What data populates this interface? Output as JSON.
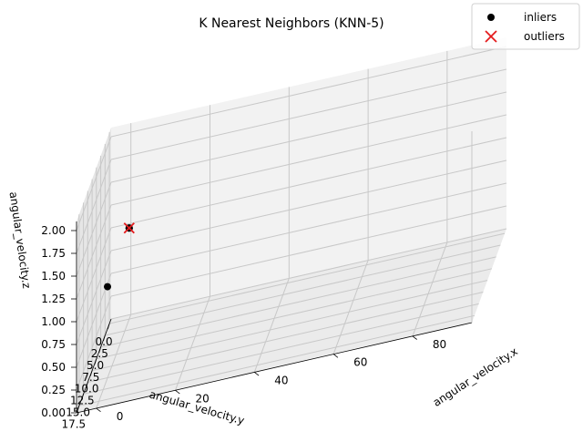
{
  "chart_data": {
    "type": "scatter",
    "title": "K Nearest Neighbors (KNN-5)",
    "xlabel": "angular_velocity.x",
    "ylabel": "angular_velocity.y",
    "zlabel": "angular_velocity.z",
    "xlim": [
      -5,
      95
    ],
    "ylim": [
      -1,
      19
    ],
    "zlim": [
      0,
      2.1
    ],
    "xticks": [
      "0",
      "20",
      "40",
      "60",
      "80"
    ],
    "xtick_values": [
      0,
      20,
      40,
      60,
      80
    ],
    "yticks": [
      "0.0",
      "2.5",
      "5.0",
      "7.5",
      "10.0",
      "12.5",
      "15.0",
      "17.5"
    ],
    "ytick_values": [
      0,
      2.5,
      5,
      7.5,
      10,
      12.5,
      15,
      17.5
    ],
    "zticks": [
      "0.00",
      "0.25",
      "0.50",
      "0.75",
      "1.00",
      "1.25",
      "1.50",
      "1.75",
      "2.00"
    ],
    "ztick_values": [
      0,
      0.25,
      0.5,
      0.75,
      1,
      1.25,
      1.5,
      1.75,
      2
    ],
    "grid": true,
    "legend_position": "top-right",
    "series": [
      {
        "name": "inliers",
        "marker": "circle",
        "color": "#000000",
        "points": [
          {
            "x": 0,
            "y": 0,
            "z": 1
          },
          {
            "x": 0,
            "y": 0,
            "z": 1
          },
          {
            "x": 0,
            "y": 0,
            "z": 1
          },
          {
            "x": 0,
            "y": 12.5,
            "z": 1
          }
        ]
      },
      {
        "name": "outliers",
        "marker": "x",
        "color": "#e41a1c",
        "points": [
          {
            "x": 0,
            "y": 0,
            "z": 1
          }
        ]
      }
    ]
  }
}
